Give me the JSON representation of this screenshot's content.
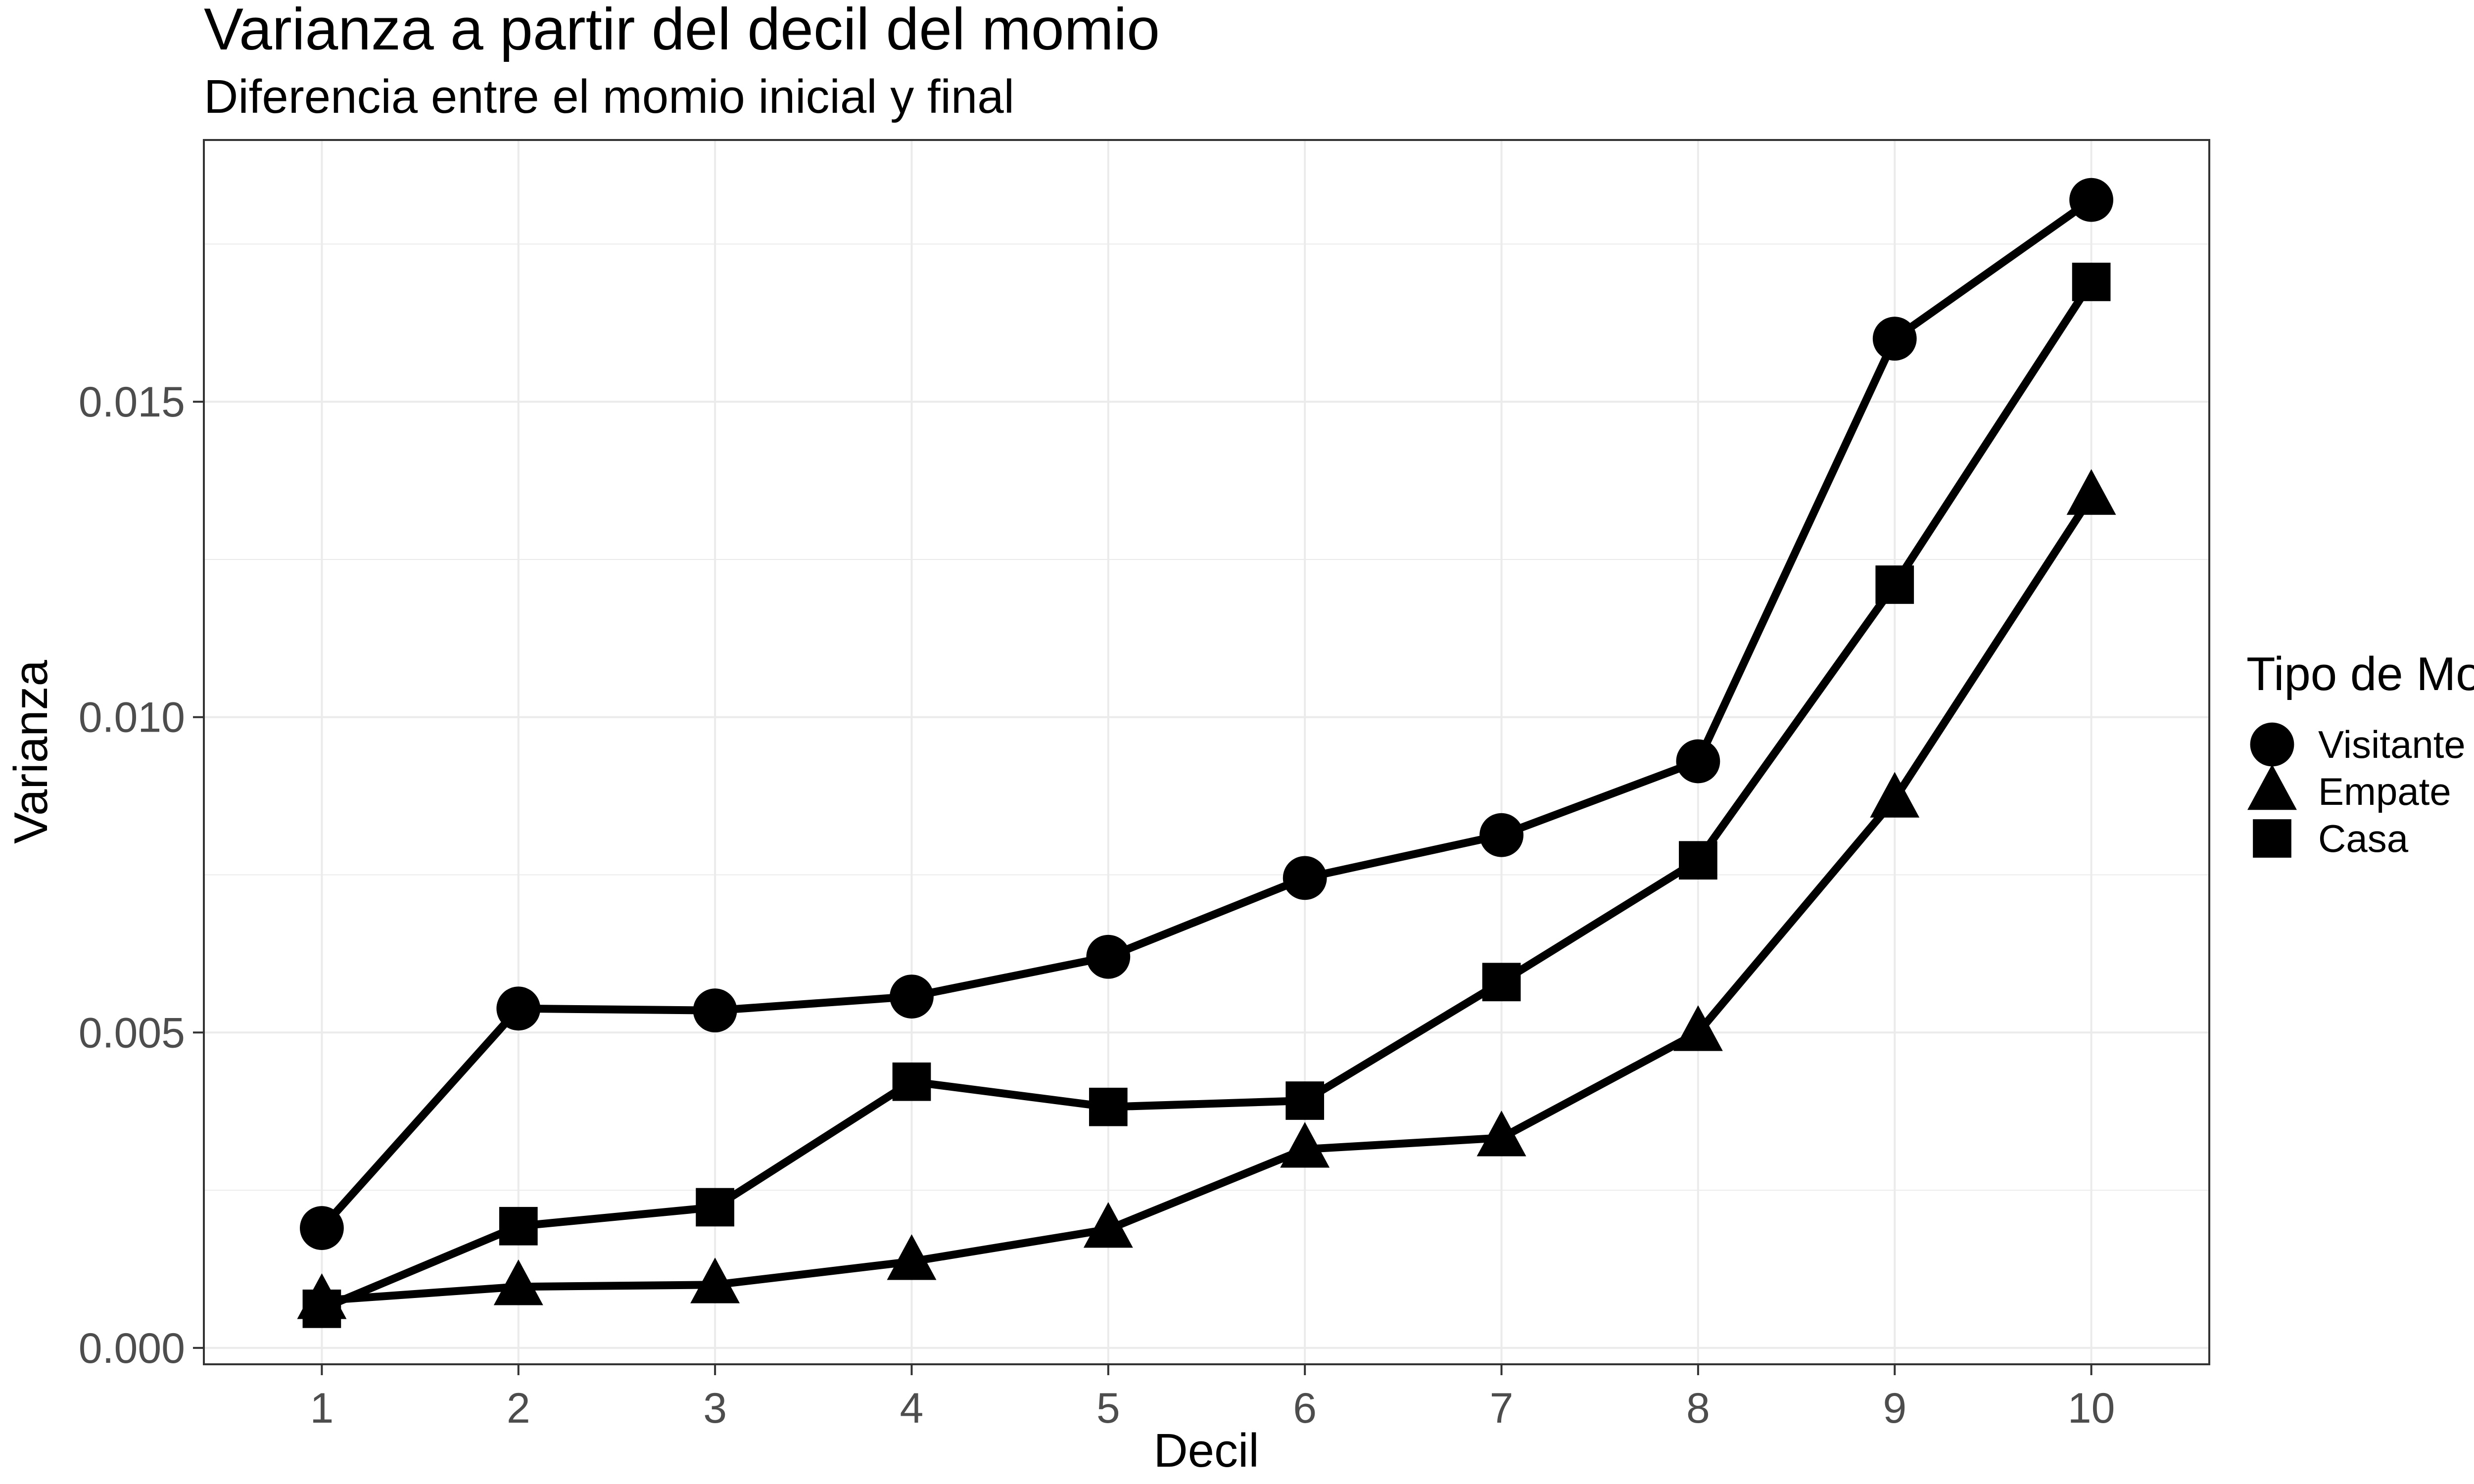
{
  "chart_data": {
    "type": "line",
    "title": "Varianza a partir del decil del momio",
    "subtitle": "Diferencia entre el momio inicial y final",
    "xlabel": "Decil",
    "ylabel": "Varianza",
    "x": [
      1,
      2,
      3,
      4,
      5,
      6,
      7,
      8,
      9,
      10
    ],
    "xlim": [
      0.4,
      10.6
    ],
    "ylim": [
      -0.00026,
      0.01915
    ],
    "y_ticks": [
      0.0,
      0.005,
      0.01,
      0.015
    ],
    "y_tick_labels": [
      "0.000",
      "0.005",
      "0.010",
      "0.015"
    ],
    "x_tick_labels": [
      "1",
      "2",
      "3",
      "4",
      "5",
      "6",
      "7",
      "8",
      "9",
      "10"
    ],
    "grid": true,
    "legend": {
      "title": "Tipo de Momio",
      "placement": "right",
      "entries": [
        "Visitante",
        "Empate",
        "Casa"
      ]
    },
    "series": [
      {
        "name": "Visitante",
        "marker": "circle",
        "values": [
          0.0019,
          0.00538,
          0.00535,
          0.00557,
          0.0062,
          0.00745,
          0.00813,
          0.0093,
          0.016,
          0.0182
        ]
      },
      {
        "name": "Empate",
        "marker": "triangle",
        "values": [
          0.00075,
          0.00097,
          0.001,
          0.00137,
          0.00188,
          0.00315,
          0.00333,
          0.005,
          0.0087,
          0.0135
        ]
      },
      {
        "name": "Casa",
        "marker": "square",
        "values": [
          0.00062,
          0.00193,
          0.00223,
          0.00422,
          0.00382,
          0.00392,
          0.0058,
          0.00773,
          0.0121,
          0.0169
        ]
      }
    ],
    "colors": {
      "line": "#000000",
      "grid": "#ebebeb",
      "panel_border": "#333333",
      "tick_text": "#4d4d4d"
    }
  }
}
